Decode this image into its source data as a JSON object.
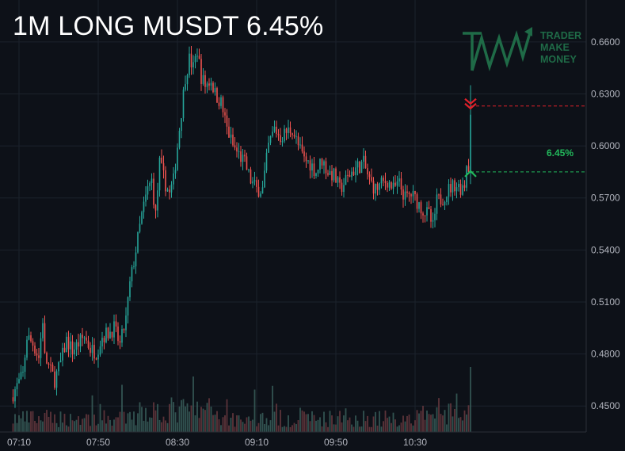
{
  "header": {
    "title": "1M LONG MUSDT 6.45%"
  },
  "logo": {
    "name": "trader-make-money-logo",
    "lines": [
      "TRADER",
      "MAKE",
      "MONEY"
    ],
    "color": "#1f6b47"
  },
  "trade": {
    "entry_price": 0.585,
    "take_profit_price": 0.623,
    "gain_label": "6.45%",
    "entry_color": "#22b85b",
    "target_color": "#e0202a"
  },
  "colors": {
    "up": "#26a69a",
    "down": "#ef5350",
    "background": "#0d1118",
    "grid": "#1c222c",
    "text": "#b2b5be"
  },
  "chart_data": {
    "type": "candlestick",
    "interval": "1m",
    "ylim": [
      0.435,
      0.675
    ],
    "y_ticks": [
      {
        "value": 0.66,
        "label": "0.6600"
      },
      {
        "value": 0.63,
        "label": "0.6300"
      },
      {
        "value": 0.6,
        "label": "0.6000"
      },
      {
        "value": 0.57,
        "label": "0.5700"
      },
      {
        "value": 0.54,
        "label": "0.5400"
      },
      {
        "value": 0.51,
        "label": "0.5100"
      },
      {
        "value": 0.48,
        "label": "0.4800"
      },
      {
        "value": 0.45,
        "label": "0.4500"
      }
    ],
    "x_ticks": [
      {
        "minute": 0,
        "label": "07:10"
      },
      {
        "minute": 40,
        "label": "07:50"
      },
      {
        "minute": 80,
        "label": "08:30"
      },
      {
        "minute": 120,
        "label": "09:10"
      },
      {
        "minute": 160,
        "label": "09:50"
      },
      {
        "minute": 200,
        "label": "10:30"
      }
    ],
    "anchors": [
      [
        -3,
        0.455
      ],
      [
        3,
        0.468
      ],
      [
        5,
        0.49
      ],
      [
        8,
        0.486
      ],
      [
        11,
        0.478
      ],
      [
        13,
        0.5
      ],
      [
        14,
        0.478
      ],
      [
        17,
        0.47
      ],
      [
        19,
        0.465
      ],
      [
        22,
        0.475
      ],
      [
        25,
        0.488
      ],
      [
        28,
        0.482
      ],
      [
        31,
        0.486
      ],
      [
        34,
        0.49
      ],
      [
        37,
        0.483
      ],
      [
        40,
        0.481
      ],
      [
        43,
        0.49
      ],
      [
        46,
        0.492
      ],
      [
        49,
        0.495
      ],
      [
        52,
        0.485
      ],
      [
        55,
        0.5
      ],
      [
        57,
        0.52
      ],
      [
        60,
        0.54
      ],
      [
        63,
        0.56
      ],
      [
        66,
        0.575
      ],
      [
        68,
        0.58
      ],
      [
        70,
        0.56
      ],
      [
        72,
        0.59
      ],
      [
        75,
        0.578
      ],
      [
        77,
        0.572
      ],
      [
        79,
        0.58
      ],
      [
        81,
        0.6
      ],
      [
        83,
        0.62
      ],
      [
        85,
        0.64
      ],
      [
        87,
        0.65
      ],
      [
        89,
        0.645
      ],
      [
        91,
        0.655
      ],
      [
        93,
        0.64
      ],
      [
        95,
        0.635
      ],
      [
        98,
        0.638
      ],
      [
        100,
        0.63
      ],
      [
        103,
        0.625
      ],
      [
        106,
        0.61
      ],
      [
        109,
        0.6
      ],
      [
        112,
        0.595
      ],
      [
        115,
        0.59
      ],
      [
        118,
        0.58
      ],
      [
        121,
        0.575
      ],
      [
        124,
        0.575
      ],
      [
        127,
        0.6
      ],
      [
        130,
        0.61
      ],
      [
        133,
        0.605
      ],
      [
        136,
        0.608
      ],
      [
        139,
        0.61
      ],
      [
        142,
        0.6
      ],
      [
        145,
        0.592
      ],
      [
        148,
        0.59
      ],
      [
        151,
        0.585
      ],
      [
        154,
        0.592
      ],
      [
        157,
        0.585
      ],
      [
        160,
        0.583
      ],
      [
        163,
        0.575
      ],
      [
        166,
        0.58
      ],
      [
        169,
        0.585
      ],
      [
        172,
        0.588
      ],
      [
        175,
        0.59
      ],
      [
        178,
        0.58
      ],
      [
        181,
        0.575
      ],
      [
        184,
        0.578
      ],
      [
        187,
        0.58
      ],
      [
        190,
        0.575
      ],
      [
        193,
        0.578
      ],
      [
        196,
        0.57
      ],
      [
        199,
        0.572
      ],
      [
        202,
        0.568
      ],
      [
        205,
        0.563
      ],
      [
        208,
        0.56
      ],
      [
        210,
        0.553
      ],
      [
        212,
        0.568
      ],
      [
        215,
        0.57
      ],
      [
        218,
        0.575
      ],
      [
        221,
        0.578
      ],
      [
        224,
        0.576
      ],
      [
        226,
        0.578
      ],
      [
        227,
        0.59
      ],
      [
        228,
        0.618
      ]
    ],
    "last_candle": {
      "minute": 228,
      "open": 0.585,
      "high": 0.635,
      "low": 0.578,
      "close": 0.618
    },
    "volume_spike": {
      "minute": 228,
      "relative_height": 1.0
    }
  }
}
